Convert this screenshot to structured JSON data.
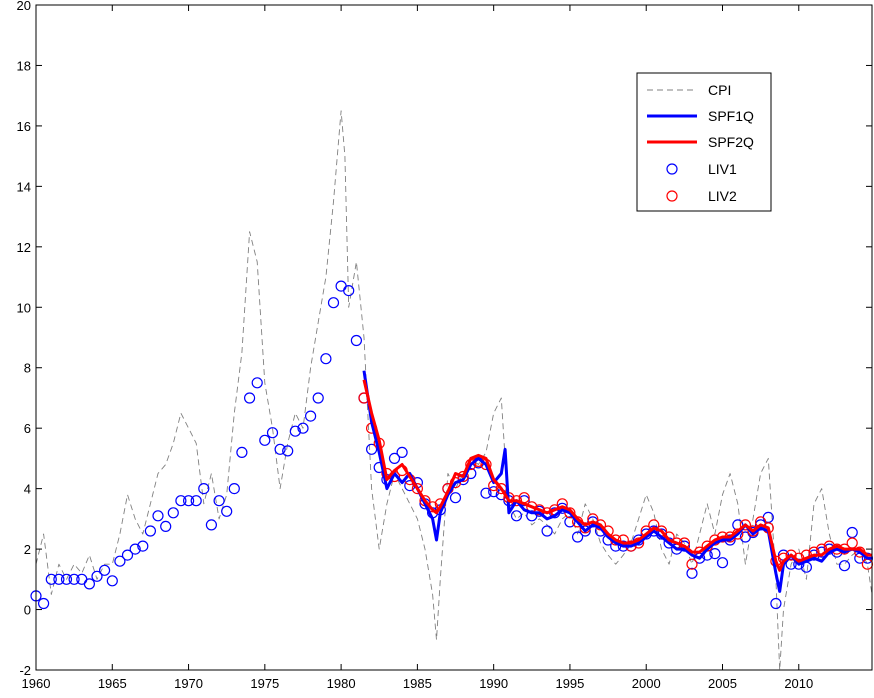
{
  "chart_data": {
    "type": "line",
    "title": "",
    "xlabel": "",
    "ylabel": "",
    "xlim": [
      1960,
      2014.8
    ],
    "ylim": [
      -2,
      20
    ],
    "xticks": [
      1960,
      1965,
      1970,
      1975,
      1980,
      1985,
      1990,
      1995,
      2000,
      2005,
      2010
    ],
    "yticks": [
      -2,
      0,
      2,
      4,
      6,
      8,
      10,
      12,
      14,
      16,
      18,
      20
    ],
    "legend_position": "top-right",
    "grid": false,
    "colors": {
      "CPI": "#808080",
      "SPF1Q": "#0000ff",
      "SPF2Q": "#ff0000",
      "LIV1": "#0000ff",
      "LIV2": "#ff0000"
    },
    "series": [
      {
        "name": "CPI",
        "style": "dashed-line",
        "x": [
          1960.0,
          1960.5,
          1961.0,
          1961.5,
          1962.0,
          1962.5,
          1963.0,
          1963.5,
          1964.0,
          1964.5,
          1965.0,
          1965.5,
          1966.0,
          1966.5,
          1967.0,
          1967.5,
          1968.0,
          1968.5,
          1969.0,
          1969.5,
          1970.0,
          1970.5,
          1971.0,
          1971.5,
          1972.0,
          1972.5,
          1973.0,
          1973.5,
          1974.0,
          1974.5,
          1975.0,
          1975.5,
          1976.0,
          1976.5,
          1977.0,
          1977.5,
          1978.0,
          1978.5,
          1979.0,
          1979.5,
          1980.0,
          1980.25,
          1980.5,
          1981.0,
          1981.5,
          1982.0,
          1982.5,
          1983.0,
          1983.5,
          1984.0,
          1984.5,
          1985.0,
          1985.5,
          1986.0,
          1986.25,
          1986.5,
          1987.0,
          1987.5,
          1988.0,
          1988.5,
          1989.0,
          1989.5,
          1990.0,
          1990.5,
          1990.75,
          1991.0,
          1991.5,
          1992.0,
          1992.5,
          1993.0,
          1993.5,
          1994.0,
          1994.5,
          1995.0,
          1995.5,
          1996.0,
          1996.5,
          1997.0,
          1997.5,
          1998.0,
          1998.5,
          1999.0,
          1999.5,
          2000.0,
          2000.5,
          2001.0,
          2001.5,
          2002.0,
          2002.5,
          2003.0,
          2003.5,
          2004.0,
          2004.5,
          2005.0,
          2005.5,
          2006.0,
          2006.5,
          2007.0,
          2007.5,
          2008.0,
          2008.5,
          2008.75,
          2009.0,
          2009.5,
          2010.0,
          2010.5,
          2011.0,
          2011.5,
          2012.0,
          2012.5,
          2013.0,
          2013.5,
          2014.0,
          2014.5,
          2014.8
        ],
        "y": [
          1.5,
          2.5,
          0.5,
          1.5,
          1.0,
          1.5,
          1.2,
          1.8,
          1.0,
          1.5,
          1.5,
          2.5,
          3.8,
          3.0,
          2.5,
          3.5,
          4.5,
          4.8,
          5.5,
          6.5,
          6.0,
          5.5,
          3.5,
          4.5,
          3.0,
          3.8,
          6.5,
          8.5,
          12.5,
          11.5,
          7.5,
          6.0,
          4.0,
          5.5,
          6.5,
          6.0,
          8.0,
          9.5,
          11.0,
          13.5,
          16.5,
          15.0,
          10.0,
          11.5,
          9.0,
          4.0,
          2.0,
          3.5,
          4.5,
          4.0,
          3.5,
          3.0,
          2.0,
          0.5,
          -1.0,
          1.0,
          4.5,
          4.0,
          4.5,
          5.0,
          4.8,
          5.2,
          6.5,
          7.0,
          5.0,
          3.5,
          3.0,
          3.2,
          2.8,
          3.0,
          2.8,
          2.5,
          3.0,
          3.2,
          2.5,
          3.5,
          3.0,
          2.2,
          1.8,
          1.5,
          1.8,
          2.2,
          3.0,
          3.8,
          3.2,
          2.0,
          1.5,
          2.5,
          2.2,
          1.5,
          2.5,
          3.5,
          2.5,
          3.8,
          4.5,
          3.5,
          1.5,
          3.0,
          4.5,
          5.0,
          1.0,
          -2.0,
          0.0,
          1.5,
          2.0,
          1.0,
          3.5,
          4.0,
          2.5,
          1.5,
          1.5,
          1.8,
          2.0,
          1.5,
          0.5
        ]
      },
      {
        "name": "SPF1Q",
        "style": "solid-line",
        "x": [
          1981.5,
          1982.0,
          1982.5,
          1983.0,
          1983.5,
          1984.0,
          1984.5,
          1985.0,
          1985.5,
          1986.0,
          1986.25,
          1986.5,
          1987.0,
          1987.5,
          1988.0,
          1988.5,
          1989.0,
          1989.5,
          1990.0,
          1990.5,
          1990.75,
          1991.0,
          1991.5,
          1992.0,
          1992.5,
          1993.0,
          1993.5,
          1994.0,
          1994.5,
          1995.0,
          1995.5,
          1996.0,
          1996.5,
          1997.0,
          1997.5,
          1998.0,
          1998.5,
          1999.0,
          1999.5,
          2000.0,
          2000.5,
          2001.0,
          2001.5,
          2002.0,
          2002.5,
          2003.0,
          2003.5,
          2004.0,
          2004.5,
          2005.0,
          2005.5,
          2006.0,
          2006.5,
          2007.0,
          2007.5,
          2008.0,
          2008.5,
          2008.75,
          2009.0,
          2009.5,
          2010.0,
          2010.5,
          2011.0,
          2011.5,
          2012.0,
          2012.5,
          2013.0,
          2013.5,
          2014.0,
          2014.5,
          2014.8
        ],
        "y": [
          7.9,
          6.2,
          5.2,
          4.0,
          4.5,
          4.2,
          4.5,
          4.0,
          3.5,
          3.0,
          2.3,
          3.2,
          3.8,
          4.2,
          4.3,
          4.8,
          5.0,
          4.8,
          4.2,
          4.5,
          5.3,
          3.2,
          3.6,
          3.3,
          3.2,
          3.2,
          3.0,
          3.1,
          3.3,
          3.2,
          2.9,
          2.6,
          2.8,
          2.7,
          2.4,
          2.2,
          2.1,
          2.1,
          2.2,
          2.4,
          2.6,
          2.4,
          2.2,
          2.0,
          2.0,
          1.8,
          1.7,
          2.0,
          2.2,
          2.3,
          2.3,
          2.5,
          2.8,
          2.5,
          2.7,
          2.6,
          1.2,
          0.6,
          1.5,
          1.8,
          1.5,
          1.6,
          1.7,
          1.6,
          1.9,
          2.0,
          1.9,
          2.0,
          1.9,
          1.7,
          1.7
        ]
      },
      {
        "name": "SPF2Q",
        "style": "solid-line",
        "x": [
          1981.5,
          1982.0,
          1982.5,
          1983.0,
          1983.5,
          1984.0,
          1984.5,
          1985.0,
          1985.5,
          1986.0,
          1986.25,
          1986.5,
          1987.0,
          1987.5,
          1988.0,
          1988.5,
          1989.0,
          1989.5,
          1990.0,
          1990.5,
          1991.0,
          1991.5,
          1992.0,
          1992.5,
          1993.0,
          1993.5,
          1994.0,
          1994.5,
          1995.0,
          1995.5,
          1996.0,
          1996.5,
          1997.0,
          1997.5,
          1998.0,
          1998.5,
          1999.0,
          1999.5,
          2000.0,
          2000.5,
          2001.0,
          2001.5,
          2002.0,
          2002.5,
          2003.0,
          2003.5,
          2004.0,
          2004.5,
          2005.0,
          2005.5,
          2006.0,
          2006.5,
          2007.0,
          2007.5,
          2008.0,
          2008.5,
          2008.75,
          2009.0,
          2009.5,
          2010.0,
          2010.5,
          2011.0,
          2011.5,
          2012.0,
          2012.5,
          2013.0,
          2013.5,
          2014.0,
          2014.5,
          2014.8
        ],
        "y": [
          7.6,
          6.5,
          5.6,
          4.3,
          4.6,
          4.8,
          4.4,
          4.0,
          3.6,
          3.3,
          3.2,
          3.4,
          3.9,
          4.5,
          4.4,
          5.0,
          5.1,
          5.0,
          4.3,
          4.0,
          3.6,
          3.6,
          3.5,
          3.4,
          3.3,
          3.2,
          3.3,
          3.4,
          3.3,
          3.0,
          2.8,
          2.9,
          2.8,
          2.5,
          2.3,
          2.2,
          2.2,
          2.3,
          2.5,
          2.7,
          2.6,
          2.3,
          2.2,
          2.1,
          1.9,
          1.9,
          2.1,
          2.3,
          2.4,
          2.4,
          2.6,
          2.8,
          2.6,
          2.8,
          2.7,
          1.6,
          1.3,
          1.6,
          1.8,
          1.6,
          1.7,
          1.8,
          1.8,
          2.0,
          2.1,
          2.0,
          2.0,
          2.0,
          1.8,
          1.8
        ]
      },
      {
        "name": "LIV1",
        "style": "circle-markers",
        "x": [
          1960.0,
          1960.5,
          1961.0,
          1961.5,
          1962.0,
          1962.5,
          1963.0,
          1963.5,
          1964.0,
          1964.5,
          1965.0,
          1965.5,
          1966.0,
          1966.5,
          1967.0,
          1967.5,
          1968.0,
          1968.5,
          1969.0,
          1969.5,
          1970.0,
          1970.5,
          1971.0,
          1971.5,
          1972.0,
          1972.5,
          1973.0,
          1973.5,
          1974.0,
          1974.5,
          1975.0,
          1975.5,
          1976.0,
          1976.5,
          1977.0,
          1977.5,
          1978.0,
          1978.5,
          1979.0,
          1979.5,
          1980.0,
          1980.5,
          1981.0,
          1981.5,
          1982.0,
          1982.5,
          1983.0,
          1983.5,
          1984.0,
          1984.5,
          1985.0,
          1985.5,
          1986.0,
          1986.5,
          1987.0,
          1987.5,
          1988.0,
          1988.5,
          1989.0,
          1989.5,
          1990.0,
          1990.5,
          1991.0,
          1991.5,
          1992.0,
          1992.5,
          1993.0,
          1993.5,
          1994.0,
          1994.5,
          1995.0,
          1995.5,
          1996.0,
          1996.5,
          1997.0,
          1997.5,
          1998.0,
          1998.5,
          1999.0,
          1999.5,
          2000.0,
          2000.5,
          2001.0,
          2001.5,
          2002.0,
          2002.5,
          2003.0,
          2003.5,
          2004.0,
          2004.5,
          2005.0,
          2005.5,
          2006.0,
          2006.5,
          2007.0,
          2007.5,
          2008.0,
          2008.5,
          2009.0,
          2009.5,
          2010.0,
          2010.5,
          2011.0,
          2011.5,
          2012.0,
          2012.5,
          2013.0,
          2013.5,
          2014.0,
          2014.5
        ],
        "y": [
          0.45,
          0.2,
          1.0,
          1.0,
          1.0,
          1.0,
          1.0,
          0.85,
          1.1,
          1.3,
          0.95,
          1.6,
          1.8,
          2.0,
          2.1,
          2.6,
          3.1,
          2.75,
          3.2,
          3.6,
          3.6,
          3.6,
          4.0,
          2.8,
          3.6,
          3.25,
          4.0,
          5.2,
          7.0,
          7.5,
          5.6,
          5.85,
          5.3,
          5.25,
          5.9,
          6.0,
          6.4,
          7.0,
          8.3,
          10.15,
          10.7,
          10.55,
          8.9,
          7.0,
          5.3,
          4.7,
          4.3,
          5.0,
          5.2,
          4.1,
          4.2,
          3.5,
          3.2,
          3.3,
          4.0,
          3.7,
          4.3,
          4.5,
          4.85,
          3.85,
          3.9,
          3.8,
          3.6,
          3.1,
          3.6,
          3.1,
          3.25,
          2.6,
          3.2,
          3.35,
          2.9,
          2.4,
          2.6,
          2.9,
          2.6,
          2.3,
          2.1,
          2.1,
          2.1,
          2.3,
          2.5,
          2.6,
          2.5,
          2.2,
          2.0,
          2.1,
          1.2,
          1.7,
          1.8,
          1.85,
          1.55,
          2.3,
          2.8,
          2.4,
          2.55,
          2.8,
          3.05,
          0.2,
          1.8,
          1.5,
          1.5,
          1.4,
          1.8,
          1.9,
          2.0,
          1.9,
          1.45,
          2.55,
          1.7,
          1.7
        ]
      },
      {
        "name": "LIV2",
        "style": "circle-markers",
        "x": [
          1981.5,
          1982.0,
          1982.5,
          1983.0,
          1983.5,
          1984.0,
          1984.5,
          1985.0,
          1985.5,
          1986.0,
          1986.5,
          1987.0,
          1987.5,
          1988.0,
          1988.5,
          1989.0,
          1989.5,
          1990.0,
          1990.5,
          1991.0,
          1991.5,
          1992.0,
          1992.5,
          1993.0,
          1993.5,
          1994.0,
          1994.5,
          1995.0,
          1995.5,
          1996.0,
          1996.5,
          1997.0,
          1997.5,
          1998.0,
          1998.5,
          1999.0,
          1999.5,
          2000.0,
          2000.5,
          2001.0,
          2001.5,
          2002.0,
          2002.5,
          2003.0,
          2003.5,
          2004.0,
          2004.5,
          2005.0,
          2005.5,
          2006.0,
          2006.5,
          2007.0,
          2007.5,
          2008.0,
          2008.5,
          2009.0,
          2009.5,
          2010.0,
          2010.5,
          2011.0,
          2011.5,
          2012.0,
          2012.5,
          2013.0,
          2013.5,
          2014.0,
          2014.5
        ],
        "y": [
          7.0,
          6.0,
          5.5,
          4.5,
          4.4,
          4.6,
          4.3,
          4.0,
          3.6,
          3.4,
          3.5,
          4.0,
          4.2,
          4.4,
          4.8,
          4.9,
          4.8,
          4.1,
          4.0,
          3.7,
          3.6,
          3.7,
          3.4,
          3.3,
          3.2,
          3.3,
          3.5,
          3.2,
          2.9,
          2.7,
          3.0,
          2.8,
          2.6,
          2.3,
          2.3,
          2.1,
          2.2,
          2.6,
          2.8,
          2.6,
          2.4,
          2.2,
          2.2,
          1.5,
          1.9,
          2.1,
          2.3,
          2.4,
          2.4,
          2.5,
          2.8,
          2.6,
          2.9,
          2.7,
          1.6,
          1.7,
          1.8,
          1.7,
          1.8,
          1.9,
          2.0,
          2.1,
          2.0,
          2.0,
          2.2,
          1.9,
          1.5
        ]
      }
    ]
  }
}
